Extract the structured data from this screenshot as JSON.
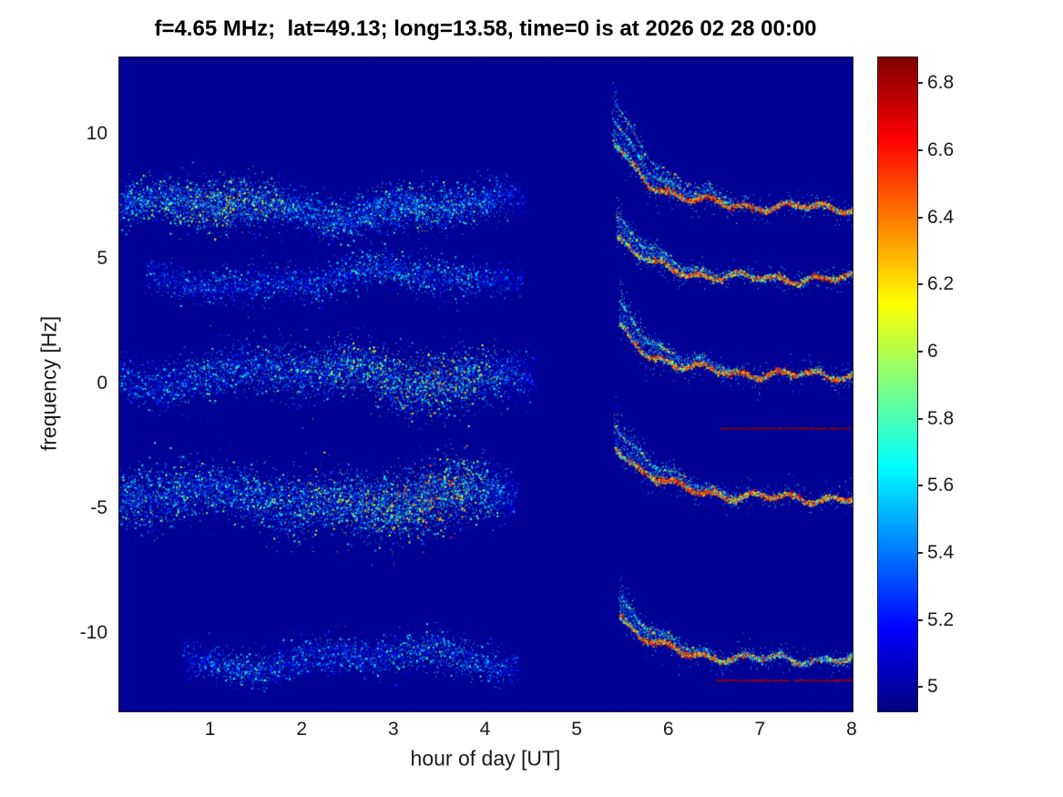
{
  "chart_data": {
    "type": "heatmap",
    "title": "f=4.65 MHz;  lat=49.13; long=13.58, time=0 is at 2026 02 28 00:00",
    "xlabel": "hour of day [UT]",
    "ylabel": "frequency [Hz]",
    "xlim": [
      0,
      8
    ],
    "ylim": [
      -13.1,
      13.1
    ],
    "xticks": [
      1,
      2,
      3,
      4,
      5,
      6,
      7,
      8
    ],
    "yticks": [
      10,
      5,
      0,
      -5,
      -10
    ],
    "grid": false,
    "legend": "none",
    "colormap": "jet",
    "colorbar": {
      "position": "right",
      "min": 4.93,
      "max": 6.88,
      "ticks": [
        5,
        5.2,
        5.4,
        5.6,
        5.8,
        6,
        6.2,
        6.4,
        6.6,
        6.8
      ]
    },
    "background_value": 4.97,
    "bands": [
      {
        "center_hz": 7.1,
        "diffuse": {
          "t0": 0.0,
          "t1": 4.45,
          "spread": 0.55,
          "density": 1.0,
          "profile": [
            [
              0,
              0.5
            ],
            [
              0.5,
              0.6
            ],
            [
              1.0,
              0.75
            ],
            [
              1.5,
              0.7
            ],
            [
              2.0,
              0.45
            ],
            [
              2.5,
              0.5
            ],
            [
              3.0,
              0.55
            ],
            [
              3.5,
              0.6
            ],
            [
              4.0,
              0.45
            ],
            [
              4.3,
              0.25
            ],
            [
              4.45,
              0.1
            ]
          ]
        },
        "sharp": {
          "t0": 5.38,
          "t1": 8.0,
          "amp": 2.7,
          "tau": 0.42,
          "fan_height": 2.8,
          "fan_len": 1.3,
          "echoes": [
            0.9,
            1.8
          ],
          "red_profile": [
            [
              5.38,
              0.3
            ],
            [
              5.6,
              0.5
            ],
            [
              5.9,
              0.65
            ],
            [
              6.2,
              0.8
            ],
            [
              6.6,
              0.75
            ],
            [
              7.0,
              0.65
            ],
            [
              7.4,
              0.7
            ],
            [
              8.0,
              0.6
            ]
          ]
        }
      },
      {
        "center_hz": 4.25,
        "diffuse": {
          "t0": 0.3,
          "t1": 4.4,
          "spread": 0.5,
          "density": 0.65,
          "profile": [
            [
              0.3,
              0.3
            ],
            [
              1.0,
              0.4
            ],
            [
              1.8,
              0.35
            ],
            [
              2.6,
              0.45
            ],
            [
              3.2,
              0.5
            ],
            [
              3.8,
              0.45
            ],
            [
              4.4,
              0.15
            ]
          ]
        },
        "sharp": {
          "t0": 5.42,
          "t1": 8.0,
          "amp": 1.7,
          "tau": 0.4,
          "fan_height": 1.8,
          "fan_len": 1.1,
          "echoes": [
            0.8
          ],
          "red_profile": [
            [
              5.42,
              0.3
            ],
            [
              5.8,
              0.55
            ],
            [
              6.1,
              0.7
            ],
            [
              6.5,
              0.6
            ],
            [
              7.0,
              0.5
            ],
            [
              7.5,
              0.65
            ],
            [
              8.0,
              0.6
            ]
          ]
        }
      },
      {
        "center_hz": 0.4,
        "diffuse": {
          "t0": 0.0,
          "t1": 4.55,
          "spread": 0.65,
          "density": 0.9,
          "profile": [
            [
              0,
              0.35
            ],
            [
              0.7,
              0.45
            ],
            [
              1.4,
              0.5
            ],
            [
              2.2,
              0.6
            ],
            [
              2.8,
              0.7
            ],
            [
              3.4,
              0.8
            ],
            [
              3.9,
              0.7
            ],
            [
              4.3,
              0.4
            ],
            [
              4.55,
              0.15
            ]
          ]
        },
        "sharp": {
          "t0": 5.45,
          "t1": 8.0,
          "amp": 1.9,
          "tau": 0.42,
          "fan_height": 2.0,
          "fan_len": 1.2,
          "echoes": [
            0.9
          ],
          "red_profile": [
            [
              5.45,
              0.35
            ],
            [
              5.8,
              0.6
            ],
            [
              6.2,
              0.75
            ],
            [
              6.7,
              0.65
            ],
            [
              7.1,
              0.7
            ],
            [
              7.6,
              0.6
            ],
            [
              8.0,
              0.65
            ]
          ]
        }
      },
      {
        "center_hz": -4.55,
        "diffuse": {
          "t0": 0.0,
          "t1": 4.35,
          "spread": 0.75,
          "density": 1.1,
          "profile": [
            [
              0,
              0.5
            ],
            [
              0.6,
              0.55
            ],
            [
              1.2,
              0.5
            ],
            [
              2.0,
              0.6
            ],
            [
              2.6,
              0.7
            ],
            [
              3.1,
              0.85
            ],
            [
              3.6,
              0.9
            ],
            [
              4.0,
              0.6
            ],
            [
              4.35,
              0.2
            ]
          ]
        },
        "sharp": {
          "t0": 5.4,
          "t1": 8.0,
          "amp": 2.2,
          "tau": 0.45,
          "fan_height": 2.2,
          "fan_len": 1.2,
          "echoes": [
            0.9
          ],
          "red_profile": [
            [
              5.4,
              0.4
            ],
            [
              5.8,
              0.75
            ],
            [
              6.2,
              0.85
            ],
            [
              6.6,
              0.7
            ],
            [
              7.0,
              0.6
            ],
            [
              7.5,
              0.65
            ],
            [
              8.0,
              0.6
            ]
          ]
        }
      },
      {
        "center_hz": -11.0,
        "diffuse": {
          "t0": 0.7,
          "t1": 4.35,
          "spread": 0.5,
          "density": 0.7,
          "profile": [
            [
              0.7,
              0.25
            ],
            [
              1.2,
              0.5
            ],
            [
              1.8,
              0.4
            ],
            [
              2.4,
              0.4
            ],
            [
              3.0,
              0.45
            ],
            [
              3.6,
              0.55
            ],
            [
              4.1,
              0.4
            ],
            [
              4.35,
              0.15
            ]
          ]
        },
        "sharp": {
          "t0": 5.45,
          "t1": 8.0,
          "amp": 1.8,
          "tau": 0.38,
          "fan_height": 1.8,
          "fan_len": 1.0,
          "echoes": [
            0.8
          ],
          "red_profile": [
            [
              5.45,
              0.45
            ],
            [
              5.8,
              0.8
            ],
            [
              6.3,
              0.75
            ],
            [
              6.8,
              0.5
            ],
            [
              7.2,
              0.3
            ],
            [
              7.6,
              0.3
            ],
            [
              8.0,
              0.4
            ]
          ]
        }
      }
    ],
    "streaks": [
      {
        "f": -1.75,
        "t0": 6.55,
        "t1": 8.0,
        "value": 6.85
      },
      {
        "f": -11.85,
        "t0": 6.5,
        "t1": 8.0,
        "value": 6.8
      }
    ]
  }
}
